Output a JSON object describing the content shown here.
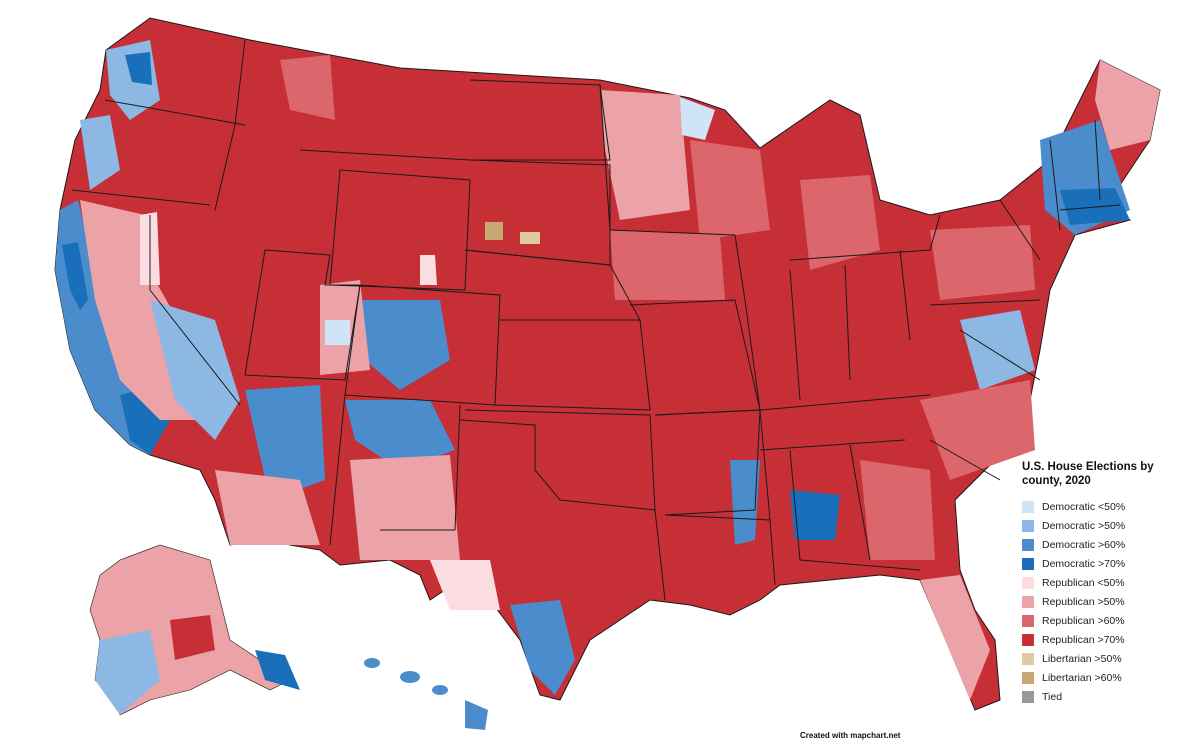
{
  "legend": {
    "title": "U.S. House Elections by county, 2020",
    "items": [
      {
        "label": "Democratic <50%",
        "color": "#cfe4f6"
      },
      {
        "label": "Democratic >50%",
        "color": "#8db8e4"
      },
      {
        "label": "Democratic >60%",
        "color": "#4a8ccc"
      },
      {
        "label": "Democratic >70%",
        "color": "#1a6fbb"
      },
      {
        "label": "Republican <50%",
        "color": "#fbdde1"
      },
      {
        "label": "Republican >50%",
        "color": "#eca3a8"
      },
      {
        "label": "Republican >60%",
        "color": "#db666c"
      },
      {
        "label": "Republican >70%",
        "color": "#c62f36"
      },
      {
        "label": "Libertarian >50%",
        "color": "#e1caa2"
      },
      {
        "label": "Libertarian >60%",
        "color": "#c7a873"
      },
      {
        "label": "Tied",
        "color": "#999999"
      }
    ]
  },
  "credit": "Created with mapchart.net",
  "colors": {
    "background": "#ffffff",
    "state_border": "#1a1a1a",
    "dem_lt50": "#cfe4f6",
    "dem_gt50": "#8db8e4",
    "dem_gt60": "#4a8ccc",
    "dem_gt70": "#1a6fbb",
    "rep_lt50": "#fbdde1",
    "rep_gt50": "#eca3a8",
    "rep_gt60": "#db666c",
    "rep_gt70": "#c62f36",
    "lib_gt50": "#e1caa2",
    "lib_gt60": "#c7a873"
  }
}
